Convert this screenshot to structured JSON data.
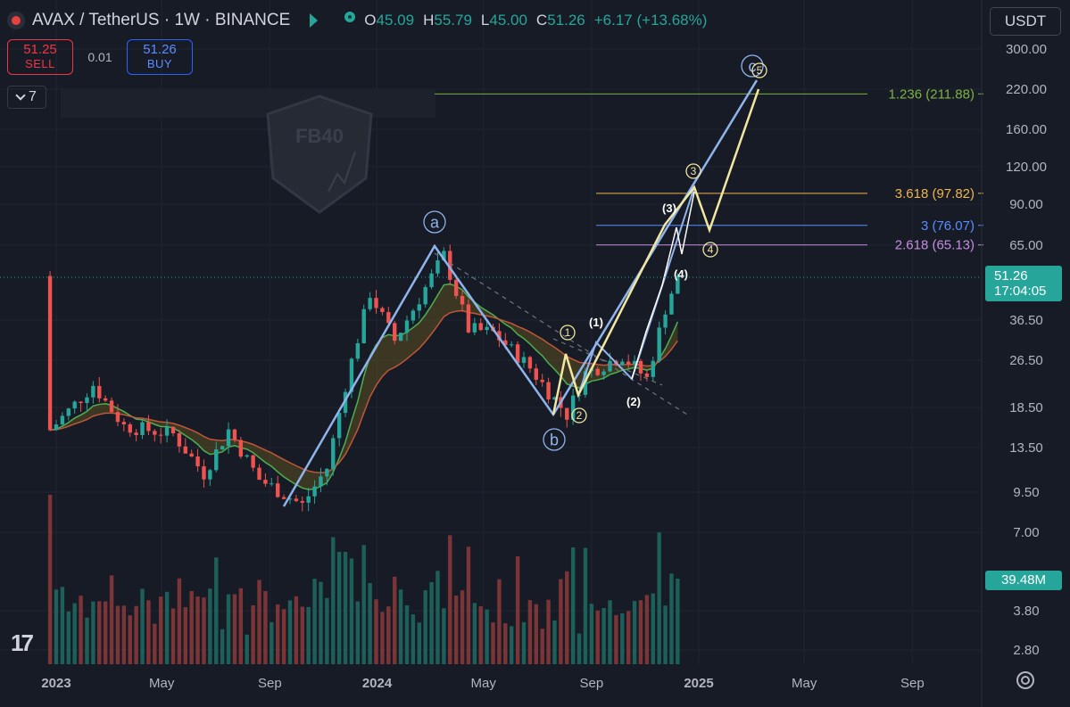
{
  "header": {
    "title": "AVAX / TetherUS · 1W · BINANCE",
    "ohlc": [
      {
        "k": "O",
        "v": "45.09"
      },
      {
        "k": "H",
        "v": "55.79"
      },
      {
        "k": "L",
        "v": "45.00"
      },
      {
        "k": "C",
        "v": "51.26"
      }
    ],
    "change": "+6.17 (+13.68%)"
  },
  "trade": {
    "sell_price": "51.25",
    "sell_label": "SELL",
    "spread": "0.01",
    "buy_price": "51.26",
    "buy_label": "BUY"
  },
  "indicators": {
    "count": "7"
  },
  "currency": {
    "label": "USDT"
  },
  "price_tag": {
    "price": "51.26",
    "countdown": "17:04:05"
  },
  "volume_tag": {
    "value": "39.48M"
  },
  "watermark": {
    "text": "FB40"
  },
  "colors": {
    "background": "#171b26",
    "up": "#26a69a",
    "down": "#ef5350",
    "wave_blue": "#8fb4ec",
    "wave_yellow": "#f2e7a0",
    "fib_1236": "#7cb342",
    "fib_3618": "#f0b44c",
    "fib_3": "#5b8cff",
    "fib_2618": "#c58ee0"
  },
  "chart_data": {
    "type": "candlestick",
    "symbol": "AVAX / TetherUS",
    "interval": "1W",
    "exchange": "BINANCE",
    "scale": "log",
    "y_ticks": [
      "300.00",
      "220.00",
      "160.00",
      "120.00",
      "90.00",
      "65.00",
      "36.50",
      "26.50",
      "18.50",
      "13.50",
      "9.50",
      "7.00",
      "3.80",
      "2.80"
    ],
    "x_ticks": [
      "2023",
      "May",
      "Sep",
      "2024",
      "May",
      "Sep",
      "2025",
      "May",
      "Sep"
    ],
    "last_price": 51.26,
    "fib_levels": [
      {
        "label": "1.236 (211.88)",
        "value": 211.88
      },
      {
        "label": "3.618 (97.82)",
        "value": 97.82
      },
      {
        "label": "3 (76.07)",
        "value": 76.07
      },
      {
        "label": "2.618 (65.13)",
        "value": 65.13
      }
    ],
    "wave_labels": {
      "major": [
        "a",
        "b",
        "c"
      ],
      "minor": [
        "(1)",
        "(2)",
        "(3)",
        "(4)"
      ],
      "circled": [
        "1",
        "2",
        "3",
        "4",
        "5"
      ]
    },
    "price_path": [
      {
        "date": "2022-12-25",
        "value": 15.5
      },
      {
        "date": "2023-02-12",
        "value": 22.0
      },
      {
        "date": "2023-03-19",
        "value": 16.0
      },
      {
        "date": "2023-05-14",
        "value": 15.0
      },
      {
        "date": "2023-06-18",
        "value": 11.0
      },
      {
        "date": "2023-07-16",
        "value": 15.5
      },
      {
        "date": "2023-08-20",
        "value": 10.5
      },
      {
        "date": "2023-10-08",
        "value": 8.6
      },
      {
        "date": "2023-11-05",
        "value": 11.5
      },
      {
        "date": "2023-11-26",
        "value": 22.0
      },
      {
        "date": "2023-12-24",
        "value": 45.0
      },
      {
        "date": "2024-01-21",
        "value": 31.0
      },
      {
        "date": "2024-03-17",
        "value": 60.0
      },
      {
        "date": "2024-04-14",
        "value": 34.0
      },
      {
        "date": "2024-05-12",
        "value": 33.0
      },
      {
        "date": "2024-06-23",
        "value": 25.0
      },
      {
        "date": "2024-08-04",
        "value": 17.5
      },
      {
        "date": "2024-08-25",
        "value": 24.0
      },
      {
        "date": "2024-10-06",
        "value": 27.5
      },
      {
        "date": "2024-11-03",
        "value": 23.0
      },
      {
        "date": "2024-11-24",
        "value": 40.0
      },
      {
        "date": "2024-12-08",
        "value": 51.26
      }
    ],
    "volume": {
      "last_value": "39.48M"
    }
  }
}
